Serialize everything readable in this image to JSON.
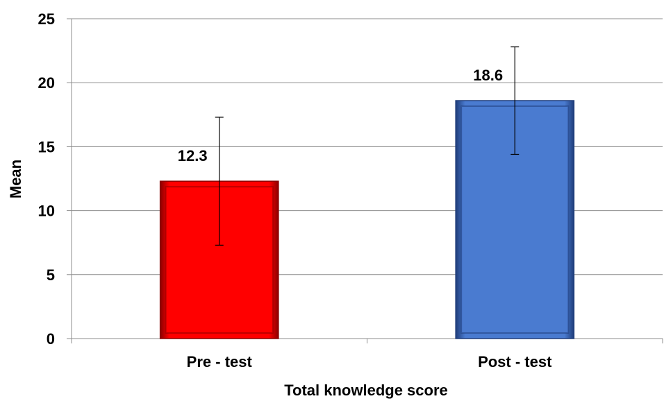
{
  "chart_data": {
    "type": "bar",
    "title": "",
    "xlabel": "Total knowledge score",
    "ylabel": "Mean",
    "categories": [
      "Pre - test",
      "Post - test"
    ],
    "values": [
      12.3,
      18.6
    ],
    "value_labels": [
      "12.3",
      "18.6"
    ],
    "error_bars": [
      {
        "low": 7.3,
        "high": 17.3
      },
      {
        "low": 14.4,
        "high": 22.8
      }
    ],
    "ylim": [
      0,
      25
    ],
    "yticks": [
      0,
      5,
      10,
      15,
      20,
      25
    ],
    "grid": true,
    "legend": "none",
    "colors": [
      "#ff0000",
      "#4a7bd0"
    ],
    "edge_colors": [
      "#8b0000",
      "#1f3d7a"
    ]
  }
}
